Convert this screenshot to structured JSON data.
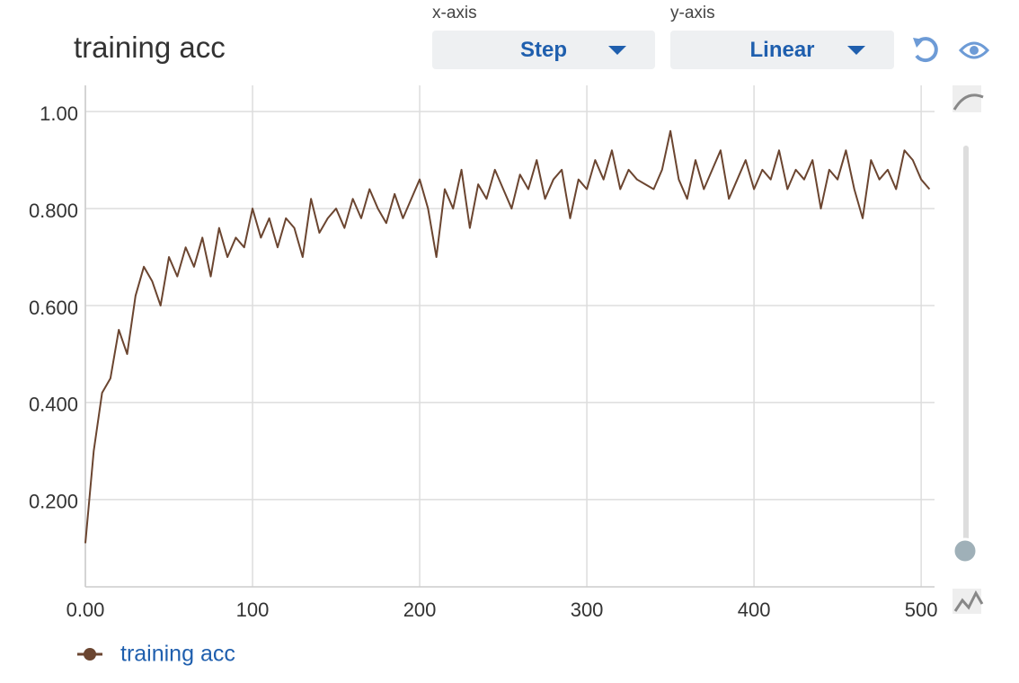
{
  "header": {
    "title": "training acc",
    "x_axis_label": "x-axis",
    "x_axis_value": "Step",
    "y_axis_label": "y-axis",
    "y_axis_value": "Linear"
  },
  "chart_data": {
    "type": "line",
    "x": [
      0,
      5,
      10,
      15,
      20,
      25,
      30,
      35,
      40,
      45,
      50,
      55,
      60,
      65,
      70,
      75,
      80,
      85,
      90,
      95,
      100,
      105,
      110,
      115,
      120,
      125,
      130,
      135,
      140,
      145,
      150,
      155,
      160,
      165,
      170,
      175,
      180,
      185,
      190,
      195,
      200,
      205,
      210,
      215,
      220,
      225,
      230,
      235,
      240,
      245,
      250,
      255,
      260,
      265,
      270,
      275,
      280,
      285,
      290,
      295,
      300,
      305,
      310,
      315,
      320,
      325,
      330,
      335,
      340,
      345,
      350,
      355,
      360,
      365,
      370,
      375,
      380,
      385,
      390,
      395,
      400,
      405,
      410,
      415,
      420,
      425,
      430,
      435,
      440,
      445,
      450,
      455,
      460,
      465,
      470,
      475,
      480,
      485,
      490,
      495,
      500,
      505
    ],
    "series": [
      {
        "name": "training acc",
        "color": "#6b4530",
        "values": [
          0.11,
          0.3,
          0.42,
          0.45,
          0.55,
          0.5,
          0.62,
          0.68,
          0.65,
          0.6,
          0.7,
          0.66,
          0.72,
          0.68,
          0.74,
          0.66,
          0.76,
          0.7,
          0.74,
          0.72,
          0.8,
          0.74,
          0.78,
          0.72,
          0.78,
          0.76,
          0.7,
          0.82,
          0.75,
          0.78,
          0.8,
          0.76,
          0.82,
          0.78,
          0.84,
          0.8,
          0.77,
          0.83,
          0.78,
          0.82,
          0.86,
          0.8,
          0.7,
          0.84,
          0.8,
          0.88,
          0.76,
          0.85,
          0.82,
          0.88,
          0.84,
          0.8,
          0.87,
          0.84,
          0.9,
          0.82,
          0.86,
          0.88,
          0.78,
          0.86,
          0.84,
          0.9,
          0.86,
          0.92,
          0.84,
          0.88,
          0.86,
          0.85,
          0.84,
          0.88,
          0.96,
          0.86,
          0.82,
          0.9,
          0.84,
          0.88,
          0.92,
          0.82,
          0.86,
          0.9,
          0.84,
          0.88,
          0.86,
          0.92,
          0.84,
          0.88,
          0.86,
          0.9,
          0.8,
          0.88,
          0.86,
          0.92,
          0.84,
          0.78,
          0.9,
          0.86,
          0.88,
          0.84,
          0.92,
          0.9,
          0.86,
          0.84
        ]
      }
    ],
    "xlim": [
      0,
      508
    ],
    "ylim": [
      0.02,
      1.054
    ],
    "xticks": [
      {
        "value": 0,
        "label": "0.00"
      },
      100,
      200,
      300,
      400,
      500
    ],
    "yticks": [
      {
        "value": 0.2,
        "label": "0.200"
      },
      {
        "value": 0.4,
        "label": "0.400"
      },
      {
        "value": 0.6,
        "label": "0.600"
      },
      {
        "value": 0.8,
        "label": "0.800"
      },
      {
        "value": 1,
        "label": "1.00"
      }
    ],
    "grid": true
  }
}
